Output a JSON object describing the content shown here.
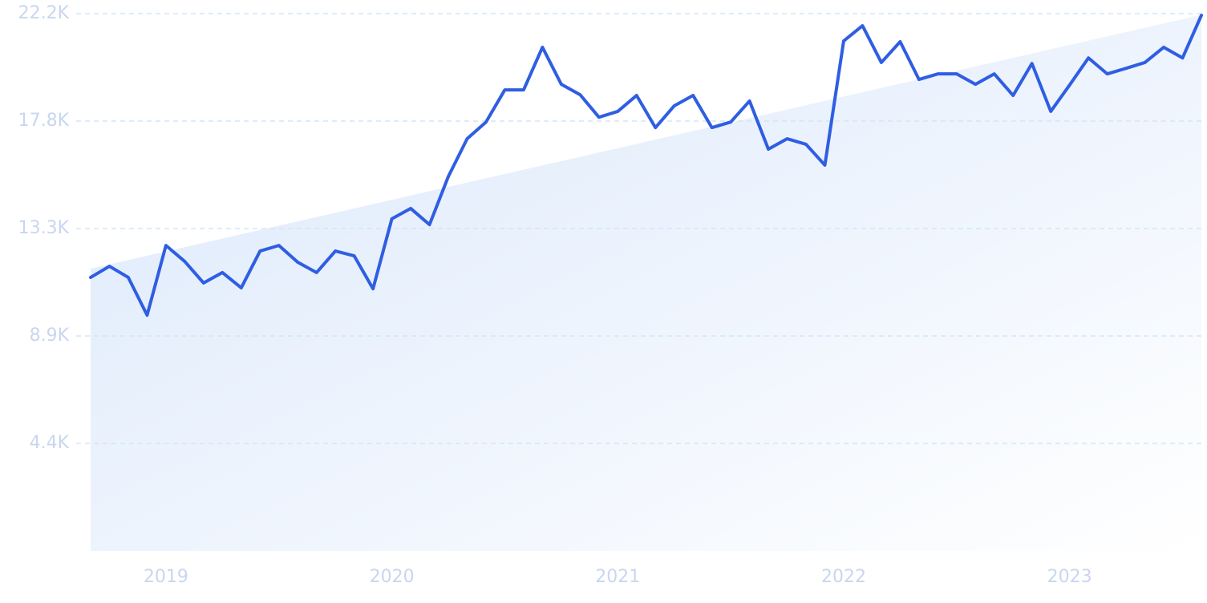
{
  "chart_data": {
    "type": "line",
    "categories": [
      null,
      null,
      null,
      null,
      "2019",
      null,
      null,
      null,
      null,
      null,
      null,
      null,
      null,
      null,
      null,
      null,
      "2020",
      null,
      null,
      null,
      null,
      null,
      null,
      null,
      null,
      null,
      null,
      null,
      "2021",
      null,
      null,
      null,
      null,
      null,
      null,
      null,
      null,
      null,
      null,
      null,
      "2022",
      null,
      null,
      null,
      null,
      null,
      null,
      null,
      null,
      null,
      null,
      null,
      "2023",
      null,
      null,
      null,
      null,
      null,
      null,
      null
    ],
    "series": [
      {
        "color": "#2f5ee3",
        "values": [
          11300,
          11760,
          11300,
          9740,
          12620,
          11960,
          11070,
          11500,
          10870,
          12390,
          12620,
          11930,
          11500,
          12390,
          12190,
          10830,
          13720,
          14150,
          13480,
          15470,
          17030,
          17720,
          19050,
          19050,
          20810,
          19280,
          18850,
          17920,
          18160,
          18820,
          17490,
          18390,
          18820,
          17490,
          17720,
          18590,
          16600,
          17030,
          16800,
          15940,
          21070,
          21700,
          20180,
          21040,
          19480,
          19710,
          19710,
          19280,
          19710,
          18820,
          20140,
          18160,
          19250,
          20370,
          19710,
          19940,
          20180,
          20810,
          20370,
          22130
        ]
      }
    ],
    "trend_values": [
      11660,
      22150
    ],
    "ylim": [
      0,
      22200
    ],
    "yticks": [
      {
        "value": 4440,
        "label": "4.4K"
      },
      {
        "value": 8880,
        "label": "8.9K"
      },
      {
        "value": 13320,
        "label": "13.3K"
      },
      {
        "value": 17760,
        "label": "17.8K"
      },
      {
        "value": 22200,
        "label": "22.2K"
      }
    ],
    "grid": true
  }
}
